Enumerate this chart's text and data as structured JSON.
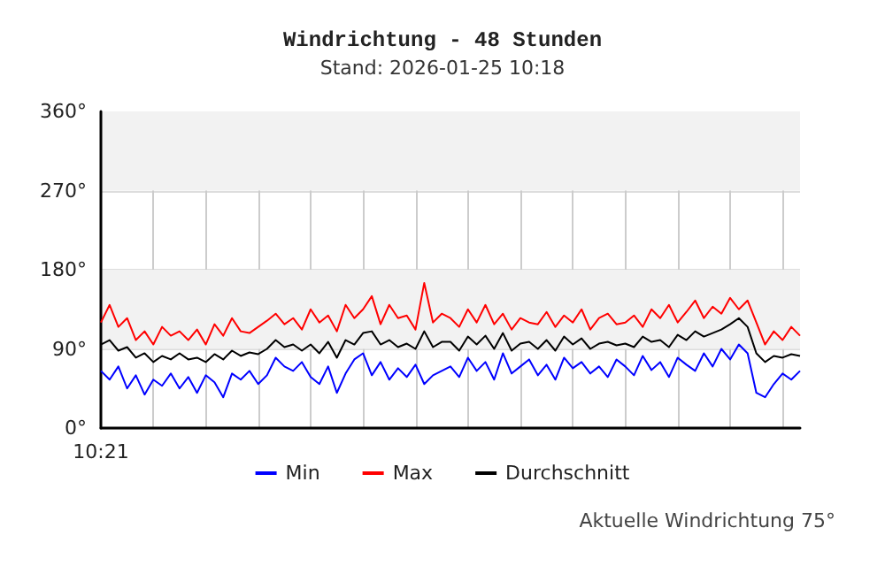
{
  "chart_data": {
    "type": "line",
    "title": "Windrichtung - 48 Stunden",
    "subtitle": "Stand: 2026-01-25 10:18",
    "annotations": [
      "Aktuelle Windrichtung 75°"
    ],
    "categories": [
      "10:21",
      null,
      null,
      null,
      null,
      null,
      null,
      null,
      null,
      null,
      null,
      null,
      null,
      null,
      null,
      null,
      null,
      null,
      null,
      null,
      null,
      null,
      null,
      null,
      null,
      null,
      null,
      null,
      null,
      null,
      null,
      null,
      null,
      null,
      null,
      null,
      null,
      null,
      null,
      null,
      null,
      null,
      null,
      null,
      null,
      null,
      null,
      null,
      null,
      null,
      null,
      null,
      null,
      null,
      null,
      null,
      null,
      null,
      null,
      null,
      null,
      null,
      null,
      null,
      null,
      null,
      null,
      null,
      null,
      null,
      null,
      null,
      null,
      null,
      null,
      null,
      null,
      null,
      null,
      null,
      null
    ],
    "series": [
      {
        "name": "Min",
        "color": "#0000ff",
        "values": [
          65,
          55,
          70,
          45,
          60,
          38,
          55,
          48,
          62,
          45,
          58,
          40,
          60,
          52,
          35,
          62,
          55,
          65,
          50,
          60,
          80,
          70,
          65,
          75,
          58,
          50,
          70,
          40,
          62,
          78,
          85,
          60,
          75,
          55,
          68,
          58,
          72,
          50,
          60,
          65,
          70,
          58,
          80,
          65,
          75,
          55,
          85,
          62,
          70,
          78,
          60,
          72,
          55,
          80,
          68,
          75,
          62,
          70,
          58,
          78,
          70,
          60,
          82,
          66,
          75,
          58,
          80,
          72,
          65,
          85,
          70,
          90,
          78,
          95,
          85,
          40,
          35,
          50,
          62,
          55,
          65
        ]
      },
      {
        "name": "Max",
        "color": "#ff0000",
        "values": [
          120,
          140,
          115,
          125,
          100,
          110,
          95,
          115,
          105,
          110,
          100,
          112,
          95,
          118,
          105,
          125,
          110,
          108,
          115,
          122,
          130,
          118,
          125,
          112,
          135,
          120,
          128,
          110,
          140,
          125,
          135,
          150,
          118,
          140,
          125,
          128,
          112,
          165,
          120,
          130,
          125,
          115,
          135,
          120,
          140,
          118,
          130,
          112,
          125,
          120,
          118,
          132,
          115,
          128,
          120,
          135,
          112,
          125,
          130,
          118,
          120,
          128,
          115,
          135,
          125,
          140,
          120,
          132,
          145,
          125,
          138,
          130,
          148,
          135,
          145,
          120,
          95,
          110,
          100,
          115,
          105
        ]
      },
      {
        "name": "Durchschnitt",
        "color": "#000000",
        "values": [
          95,
          100,
          88,
          92,
          80,
          85,
          75,
          82,
          78,
          85,
          78,
          80,
          75,
          84,
          78,
          88,
          82,
          86,
          84,
          90,
          100,
          92,
          95,
          88,
          95,
          85,
          98,
          80,
          100,
          95,
          108,
          110,
          95,
          100,
          92,
          96,
          90,
          110,
          92,
          98,
          98,
          88,
          104,
          95,
          105,
          90,
          108,
          88,
          96,
          98,
          90,
          100,
          88,
          104,
          95,
          102,
          90,
          96,
          98,
          94,
          96,
          92,
          104,
          98,
          100,
          92,
          106,
          100,
          110,
          104,
          108,
          112,
          118,
          125,
          115,
          85,
          75,
          82,
          80,
          84,
          82
        ]
      }
    ],
    "ylim": [
      0,
      360
    ],
    "yticks": [
      {
        "value": 0,
        "label": "0°"
      },
      {
        "value": 90,
        "label": "90°"
      },
      {
        "value": 180,
        "label": "180°"
      },
      {
        "value": 270,
        "label": "270°"
      },
      {
        "value": 360,
        "label": "360°"
      }
    ],
    "bands": [
      {
        "axis": "y",
        "from": 90,
        "to": 180,
        "color": "#f2f2f2"
      },
      {
        "axis": "y",
        "from": 270,
        "to": 360,
        "color": "#f2f2f2"
      }
    ],
    "grid": true,
    "legend": "bottom",
    "marker": "none",
    "line_style": "solid"
  }
}
